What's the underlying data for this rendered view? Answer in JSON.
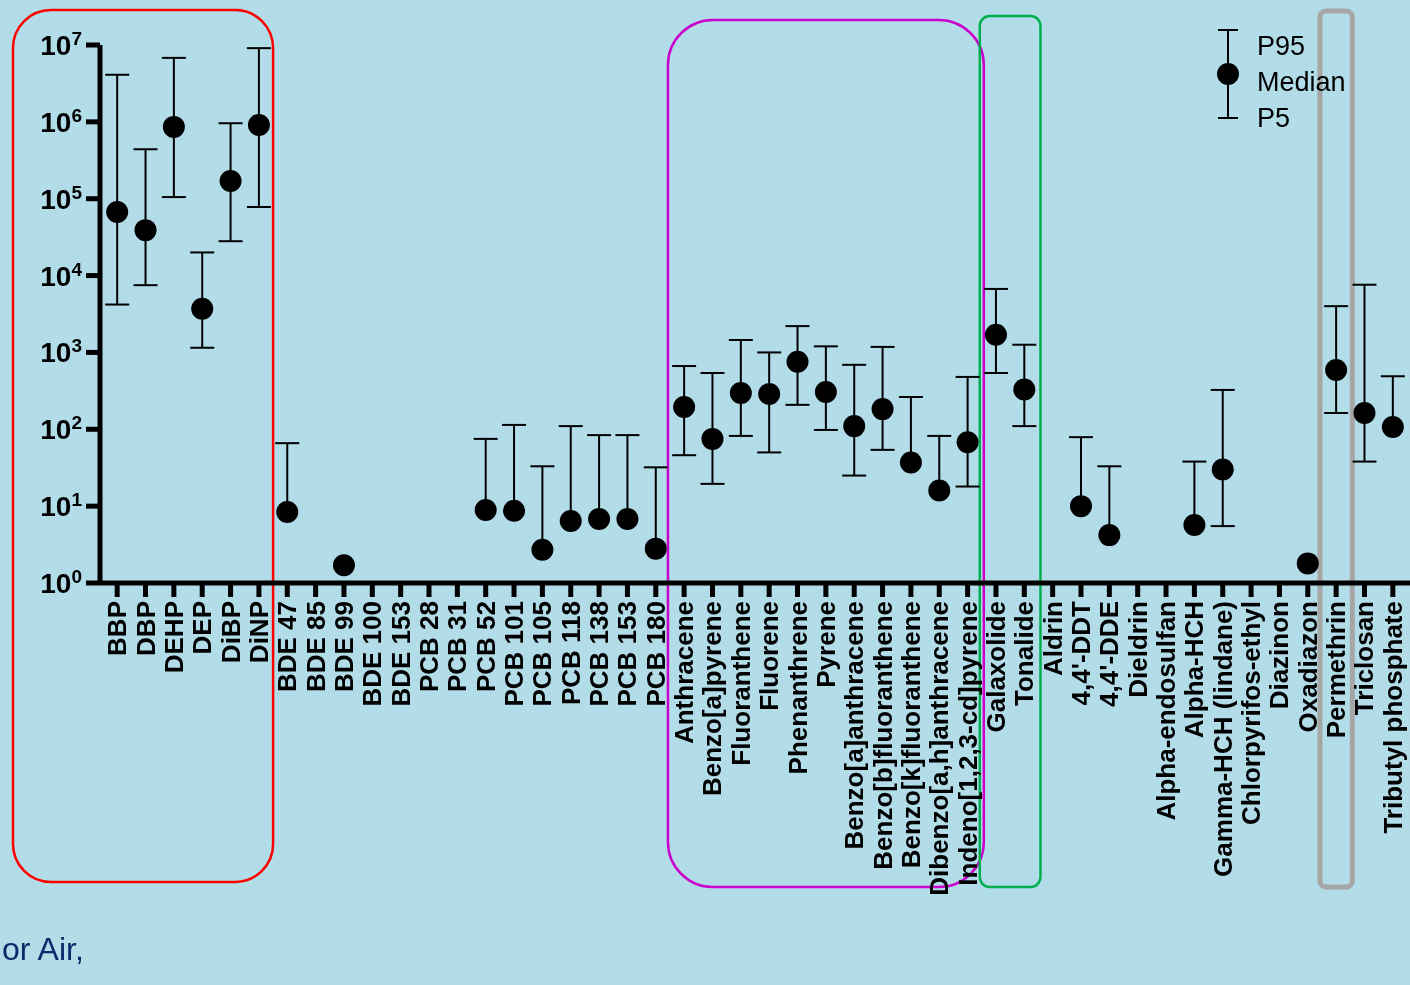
{
  "chart_data": {
    "type": "scatter",
    "log": "y",
    "ylim": [
      1,
      10000000
    ],
    "yticks": [
      {
        "value": 1,
        "label": "10$^{0}$"
      },
      {
        "value": 10,
        "label": "10$^{1}$"
      },
      {
        "value": 100,
        "label": "10$^{2}$"
      },
      {
        "value": 1000,
        "label": "10$^{3}$"
      },
      {
        "value": 10000,
        "label": "10$^{4}$"
      },
      {
        "value": 100000,
        "label": "10$^{5}$"
      },
      {
        "value": 1000000,
        "label": "10$^{6}$"
      },
      {
        "value": 10000000,
        "label": "10$^{7}$"
      }
    ],
    "categories": [
      "BBP",
      "DBP",
      "DEHP",
      "DEP",
      "DiBP",
      "DiNP",
      "BDE 47",
      "BDE 85",
      "BDE 99",
      "BDE 100",
      "BDE 153",
      "PCB 28",
      "PCB 31",
      "PCB 52",
      "PCB 101",
      "PCB 105",
      "PCB 118",
      "PCB 138",
      "PCB 153",
      "PCB 180",
      "Anthracene",
      "Benzo[a]pyrene",
      "Fluoranthene",
      "Fluorene",
      "Phenanthrene",
      "Pyrene",
      "Benzo[a]anthracene",
      "Benzo[b]fluoranthene",
      "Benzo[k]fluoranthene",
      "Dibenzo[a,h]anthracene",
      "Indeno[1,2,3-cd]pyrene",
      "Galaxolide",
      "Tonalide",
      "Aldrin",
      "4,4'-DDT",
      "4,4'-DDE",
      "Dieldrin",
      "Alpha-endosulfan",
      "Alpha-HCH",
      "Gamma-HCH (lindane)",
      "Chlorpyrifos-ethyl",
      "Diazinon",
      "Oxadiazon",
      "Permethrin",
      "Triclosan",
      "Tributyl phosphate"
    ],
    "series": [
      {
        "name": "Median",
        "color": "#000000",
        "values": [
          67000,
          39000,
          860000,
          3700,
          170000,
          910000,
          8.4,
          null,
          1.7,
          null,
          null,
          null,
          null,
          8.9,
          8.7,
          2.7,
          6.4,
          6.8,
          6.8,
          2.8,
          195,
          75,
          296,
          288,
          755,
          305,
          110,
          183,
          37,
          16,
          68,
          1700,
          330,
          null,
          10,
          4.2,
          null,
          null,
          5.7,
          30,
          null,
          null,
          1.8,
          590,
          163,
          107
        ],
        "errors": [
          [
            4200,
            4100000
          ],
          [
            7500,
            440000
          ],
          [
            105000,
            6800000
          ],
          [
            1150,
            20000
          ],
          [
            28000,
            960000
          ],
          [
            78000,
            9100000
          ],
          [
            8.4,
            66
          ],
          null,
          null,
          null,
          null,
          null,
          null,
          [
            8.9,
            75
          ],
          [
            8.7,
            114
          ],
          [
            2.7,
            33
          ],
          [
            6.4,
            110
          ],
          [
            6.8,
            84
          ],
          [
            6.8,
            84
          ],
          [
            2.8,
            32
          ],
          [
            46,
            665
          ],
          [
            19.5,
            540
          ],
          [
            82,
            1450
          ],
          [
            50,
            1000
          ],
          [
            208,
            2200
          ],
          [
            98,
            1200
          ],
          [
            25,
            690
          ],
          [
            54,
            1180
          ],
          [
            37,
            263
          ],
          [
            16,
            82
          ],
          [
            18,
            480
          ],
          [
            540,
            6700
          ],
          [
            110,
            1260
          ],
          null,
          [
            10,
            79
          ],
          [
            4.2,
            33
          ],
          null,
          null,
          [
            5.7,
            38
          ],
          [
            5.5,
            325
          ],
          null,
          null,
          null,
          [
            163,
            4000
          ],
          [
            38,
            7600
          ],
          [
            107,
            490
          ]
        ]
      }
    ],
    "marker": "circle",
    "legend": "top right",
    "grid": false,
    "annotations": [
      "P95",
      "P5",
      "or Air,"
    ]
  }
}
